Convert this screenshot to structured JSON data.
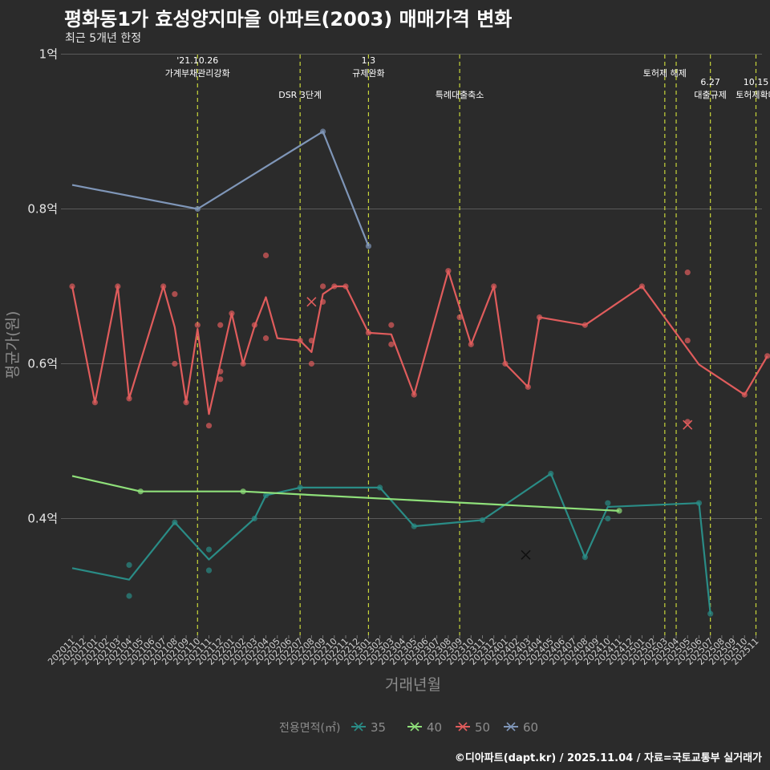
{
  "header": {
    "title": "평화동1가 효성양지마을 아파트(2003) 매매가격 변화",
    "subtitle": "최근 5개년 한정"
  },
  "caption": "©디아파트(dapt.kr) / 2025.11.04 / 자료=국토교통부 실거래가",
  "colors": {
    "background": "#2b2b2b",
    "grid": "#5a5a5a",
    "event_line": "#c8d63a",
    "s35": "#2a8c86",
    "s40": "#8fe07a",
    "s50": "#e05c5c",
    "s60": "#7f96b8"
  },
  "chart_data": {
    "type": "line",
    "title": "평화동1가 효성양지마을 아파트(2003) 매매가격 변화",
    "xlabel": "거래년월",
    "ylabel": "평균가(원)",
    "ylim": [
      0.25,
      1.0
    ],
    "yticks": [
      {
        "value": 0.4,
        "label": "0.4억"
      },
      {
        "value": 0.6,
        "label": "0.6억"
      },
      {
        "value": 0.8,
        "label": "0.8억"
      },
      {
        "value": 1.0,
        "label": "1억"
      }
    ],
    "x_categories": [
      "202011",
      "202012",
      "202101",
      "202102",
      "202103",
      "202104",
      "202105",
      "202106",
      "202107",
      "202108",
      "202109",
      "202110",
      "202111",
      "202112",
      "202201",
      "202202",
      "202203",
      "202204",
      "202205",
      "202206",
      "202207",
      "202208",
      "202209",
      "202210",
      "202211",
      "202212",
      "202301",
      "202302",
      "202303",
      "202304",
      "202305",
      "202306",
      "202307",
      "202308",
      "202309",
      "202310",
      "202311",
      "202312",
      "202401",
      "202402",
      "202403",
      "202404",
      "202405",
      "202406",
      "202407",
      "202408",
      "202409",
      "202410",
      "202411",
      "202412",
      "202501",
      "202502",
      "202503",
      "202504",
      "202505",
      "202506",
      "202507",
      "202508",
      "202509",
      "202510",
      "202511"
    ],
    "events": [
      {
        "x": 11,
        "label_lines": [
          "'21.10.26",
          "가계부채관리강화"
        ],
        "row": 0
      },
      {
        "x": 20,
        "label_lines": [
          "DSR 3단계"
        ],
        "row": 1
      },
      {
        "x": 26,
        "label_lines": [
          "1.3",
          "규제완화"
        ],
        "row": 0
      },
      {
        "x": 34,
        "label_lines": [
          "특례대출축소"
        ],
        "row": 1
      },
      {
        "x": 52,
        "label_lines": [
          "토허제 해제"
        ],
        "row": 0
      },
      {
        "x": 53,
        "label_lines": [],
        "row": 0
      },
      {
        "x": 56,
        "label_lines": [
          "6.27",
          "대출규제"
        ],
        "row": 1
      },
      {
        "x": 60,
        "label_lines": [
          "10.15",
          "토허제확대"
        ],
        "row": 1
      }
    ],
    "legend": {
      "title": "전용면적(㎡)",
      "entries": [
        {
          "label": "35",
          "color": "#2a8c86"
        },
        {
          "label": "40",
          "color": "#8fe07a"
        },
        {
          "label": "50",
          "color": "#e05c5c"
        },
        {
          "label": "60",
          "color": "#7f96b8"
        }
      ]
    },
    "series": [
      {
        "name": "35",
        "color": "#2a8c86",
        "line": [
          [
            0,
            0.336
          ],
          [
            5,
            0.321
          ],
          [
            9,
            0.395
          ],
          [
            12,
            0.347
          ],
          [
            16,
            0.4
          ],
          [
            17,
            0.43
          ],
          [
            20,
            0.44
          ],
          [
            27,
            0.44
          ],
          [
            30,
            0.39
          ],
          [
            36,
            0.398
          ],
          [
            42,
            0.458
          ],
          [
            45,
            0.35
          ],
          [
            47,
            0.415
          ],
          [
            55,
            0.42
          ],
          [
            56,
            0.277
          ]
        ],
        "points": [
          [
            5,
            0.34
          ],
          [
            5,
            0.3
          ],
          [
            9,
            0.395
          ],
          [
            12,
            0.36
          ],
          [
            12,
            0.333
          ],
          [
            16,
            0.4
          ],
          [
            17,
            0.43
          ],
          [
            20,
            0.44
          ],
          [
            27,
            0.44
          ],
          [
            30,
            0.39
          ],
          [
            36,
            0.398
          ],
          [
            42,
            0.458
          ],
          [
            45,
            0.35
          ],
          [
            47,
            0.42
          ],
          [
            47,
            0.4
          ],
          [
            55,
            0.42
          ],
          [
            56,
            0.277
          ]
        ],
        "crosses": [
          [
            39.8,
            0.353
          ]
        ]
      },
      {
        "name": "40",
        "color": "#8fe07a",
        "line": [
          [
            0,
            0.455
          ],
          [
            6,
            0.435
          ],
          [
            15,
            0.435
          ],
          [
            48,
            0.41
          ]
        ],
        "points": [
          [
            6,
            0.435
          ],
          [
            15,
            0.435
          ],
          [
            48,
            0.41
          ]
        ],
        "crosses": []
      },
      {
        "name": "50",
        "color": "#e05c5c",
        "line": [
          [
            0,
            0.7
          ],
          [
            2,
            0.55
          ],
          [
            4,
            0.7
          ],
          [
            5,
            0.555
          ],
          [
            8,
            0.7
          ],
          [
            9,
            0.647
          ],
          [
            10,
            0.55
          ],
          [
            11,
            0.645
          ],
          [
            12,
            0.535
          ],
          [
            13,
            0.6
          ],
          [
            14,
            0.665
          ],
          [
            15,
            0.6
          ],
          [
            16,
            0.648
          ],
          [
            17,
            0.686
          ],
          [
            18,
            0.633
          ],
          [
            20,
            0.63
          ],
          [
            21,
            0.615
          ],
          [
            22,
            0.69
          ],
          [
            23,
            0.7
          ],
          [
            24,
            0.7
          ],
          [
            26,
            0.64
          ],
          [
            28,
            0.638
          ],
          [
            30,
            0.56
          ],
          [
            33,
            0.72
          ],
          [
            35,
            0.625
          ],
          [
            37,
            0.7
          ],
          [
            38,
            0.6
          ],
          [
            40,
            0.57
          ],
          [
            41,
            0.66
          ],
          [
            45,
            0.65
          ],
          [
            50,
            0.7
          ],
          [
            55,
            0.599
          ],
          [
            59,
            0.56
          ],
          [
            61,
            0.61
          ]
        ],
        "points": [
          [
            0,
            0.7
          ],
          [
            2,
            0.55
          ],
          [
            4,
            0.7
          ],
          [
            5,
            0.555
          ],
          [
            8,
            0.7
          ],
          [
            9,
            0.69
          ],
          [
            9,
            0.6
          ],
          [
            10,
            0.55
          ],
          [
            11,
            0.65
          ],
          [
            12,
            0.52
          ],
          [
            13,
            0.65
          ],
          [
            13,
            0.59
          ],
          [
            13,
            0.58
          ],
          [
            14,
            0.665
          ],
          [
            15,
            0.6
          ],
          [
            16,
            0.65
          ],
          [
            17,
            0.74
          ],
          [
            17,
            0.633
          ],
          [
            20,
            0.63
          ],
          [
            21,
            0.63
          ],
          [
            21,
            0.6
          ],
          [
            22,
            0.7
          ],
          [
            22,
            0.68
          ],
          [
            23,
            0.7
          ],
          [
            24,
            0.7
          ],
          [
            26,
            0.64
          ],
          [
            28,
            0.65
          ],
          [
            28,
            0.625
          ],
          [
            30,
            0.56
          ],
          [
            33,
            0.72
          ],
          [
            34,
            0.66
          ],
          [
            35,
            0.625
          ],
          [
            37,
            0.7
          ],
          [
            38,
            0.6
          ],
          [
            40,
            0.57
          ],
          [
            41,
            0.66
          ],
          [
            45,
            0.65
          ],
          [
            50,
            0.7
          ],
          [
            54,
            0.718
          ],
          [
            54,
            0.63
          ],
          [
            54,
            0.525
          ],
          [
            59,
            0.56
          ],
          [
            61,
            0.61
          ]
        ],
        "crosses": [
          [
            21,
            0.68
          ],
          [
            54,
            0.521
          ]
        ]
      },
      {
        "name": "60",
        "color": "#7f96b8",
        "line": [
          [
            0,
            0.831
          ],
          [
            11,
            0.8
          ],
          [
            22,
            0.9
          ],
          [
            26,
            0.752
          ]
        ],
        "points": [
          [
            11,
            0.8
          ],
          [
            22,
            0.9
          ],
          [
            26,
            0.752
          ]
        ],
        "crosses": []
      }
    ]
  }
}
